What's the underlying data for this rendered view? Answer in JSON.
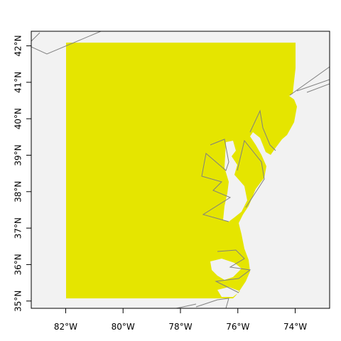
{
  "colors": {
    "background": "#ffffff",
    "land": "#f2f2f2",
    "coastline": "#808080",
    "raster": "#e5e500",
    "frame": "#000000"
  },
  "map": {
    "x_range": [
      -83.2,
      -72.8
    ],
    "y_range": [
      34.8,
      42.4
    ],
    "x_ticks": [
      {
        "value": -82,
        "label": "82°W"
      },
      {
        "value": -80,
        "label": "80°W"
      },
      {
        "value": -78,
        "label": "78°W"
      },
      {
        "value": -76,
        "label": "76°W"
      },
      {
        "value": -74,
        "label": "74°W"
      }
    ],
    "y_ticks": [
      {
        "value": 35,
        "label": "35°N"
      },
      {
        "value": 36,
        "label": "36°N"
      },
      {
        "value": 37,
        "label": "37°N"
      },
      {
        "value": 38,
        "label": "38°N"
      },
      {
        "value": 39,
        "label": "39°N"
      },
      {
        "value": 40,
        "label": "40°N"
      },
      {
        "value": 41,
        "label": "41°N"
      },
      {
        "value": 42,
        "label": "42°N"
      }
    ],
    "raster_extent": {
      "lon": [
        -82,
        -74
      ],
      "lat": [
        35,
        42
      ]
    }
  }
}
